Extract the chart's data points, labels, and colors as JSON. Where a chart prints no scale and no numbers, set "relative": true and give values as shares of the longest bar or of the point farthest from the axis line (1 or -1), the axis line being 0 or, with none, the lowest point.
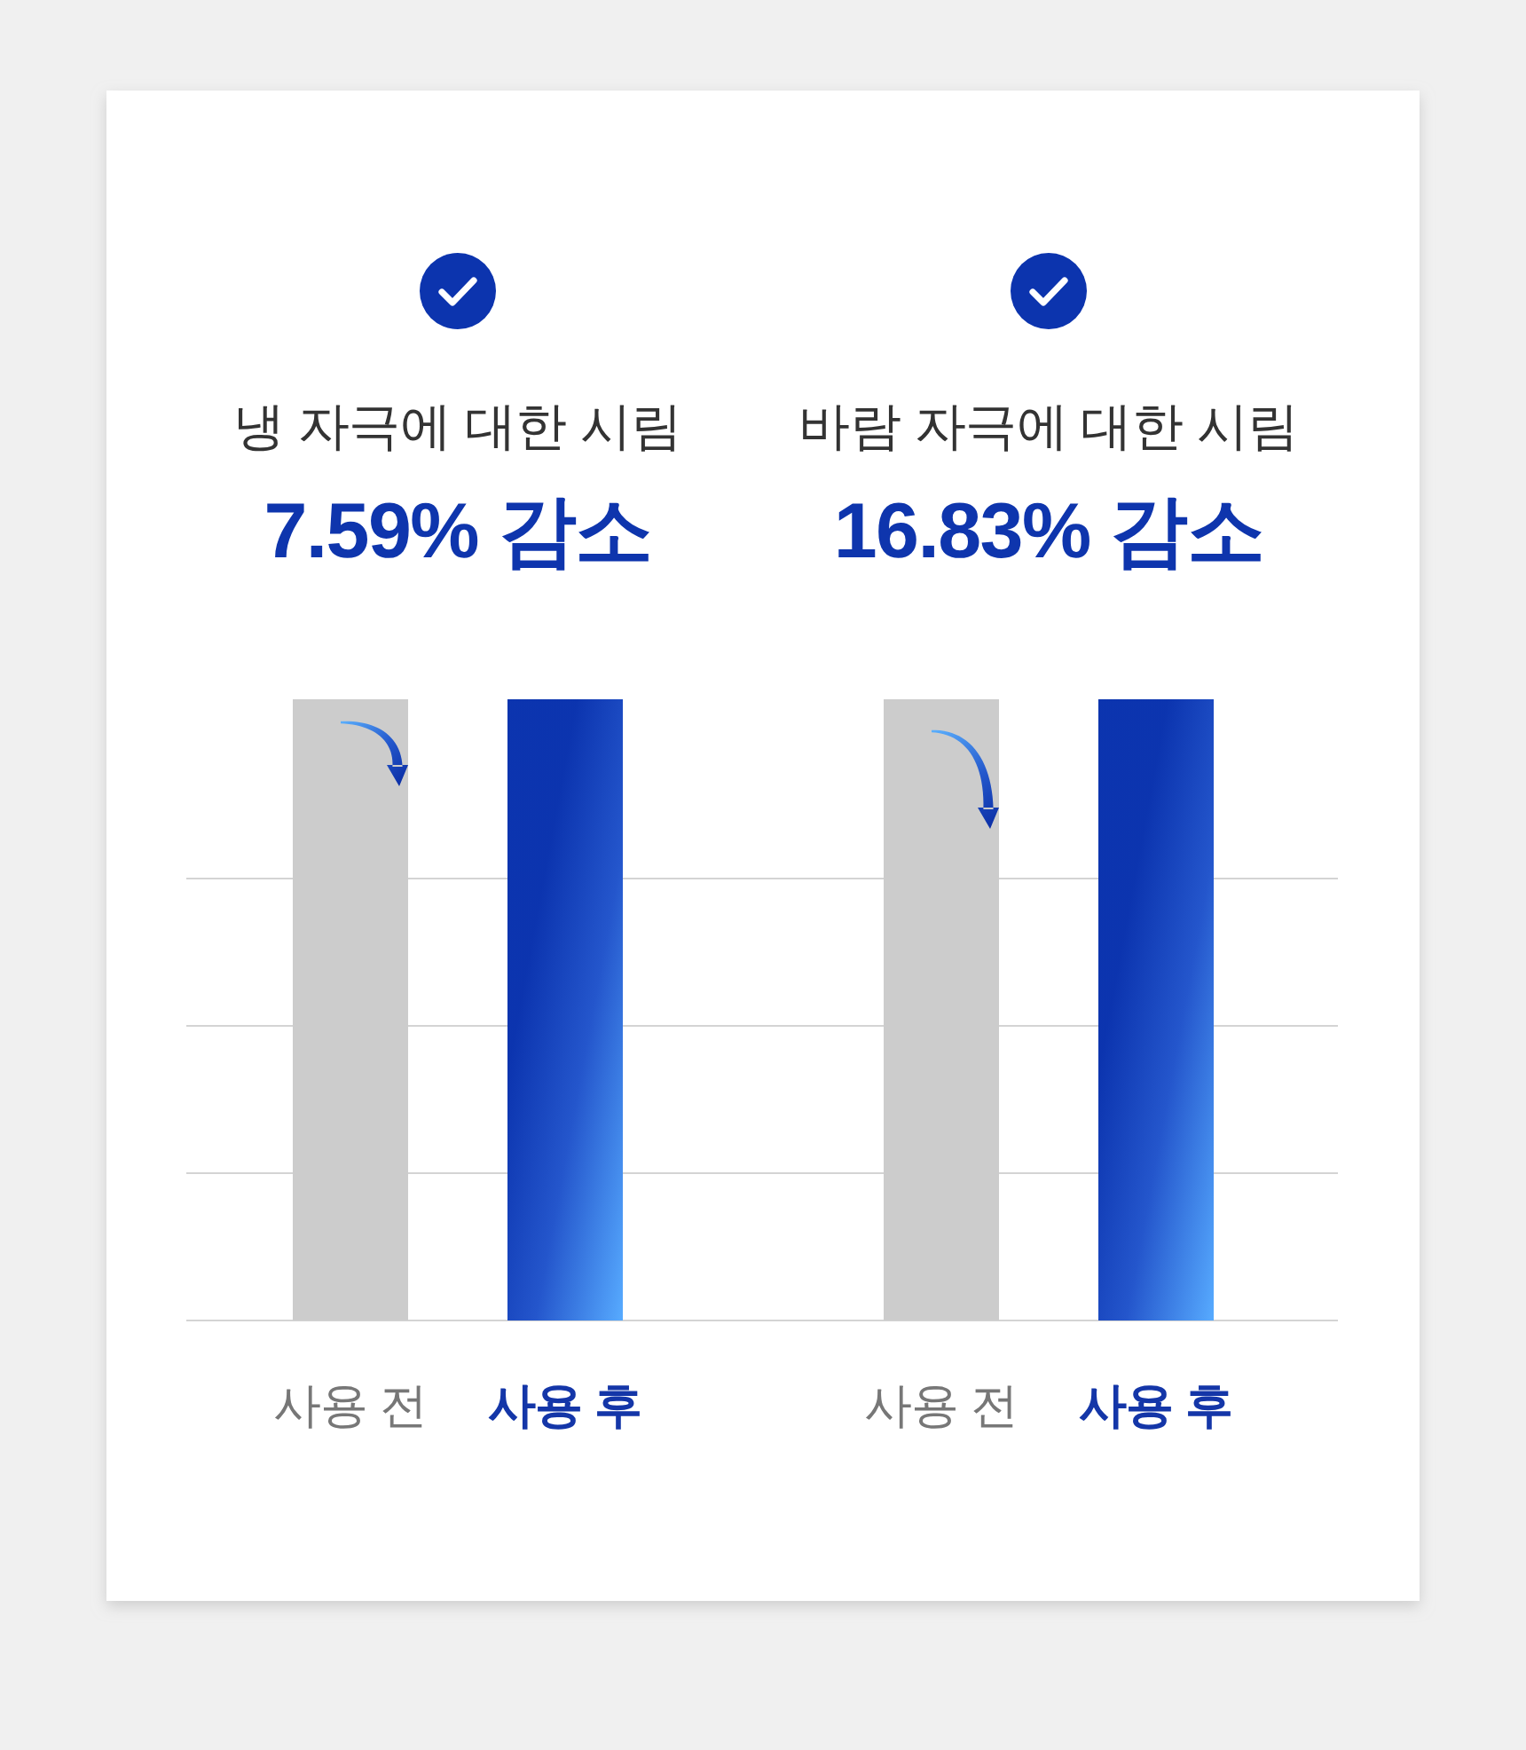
{
  "chart_data": [
    {
      "type": "bar",
      "title": "냉 자극에 대한 시림",
      "subtitle": "7.59% 감소",
      "categories": [
        "사용 전",
        "사용 후"
      ],
      "values": [
        1,
        1
      ],
      "colors": [
        "#cccccc",
        "#2456cc"
      ],
      "relative": true,
      "grid": "y"
    },
    {
      "type": "bar",
      "title": "바람 자극에 대한 시림",
      "subtitle": "16.83% 감소",
      "categories": [
        "사용 전",
        "사용 후"
      ],
      "values": [
        1,
        1
      ],
      "colors": [
        "#cccccc",
        "#2456cc"
      ],
      "relative": true,
      "grid": "y"
    }
  ]
}
